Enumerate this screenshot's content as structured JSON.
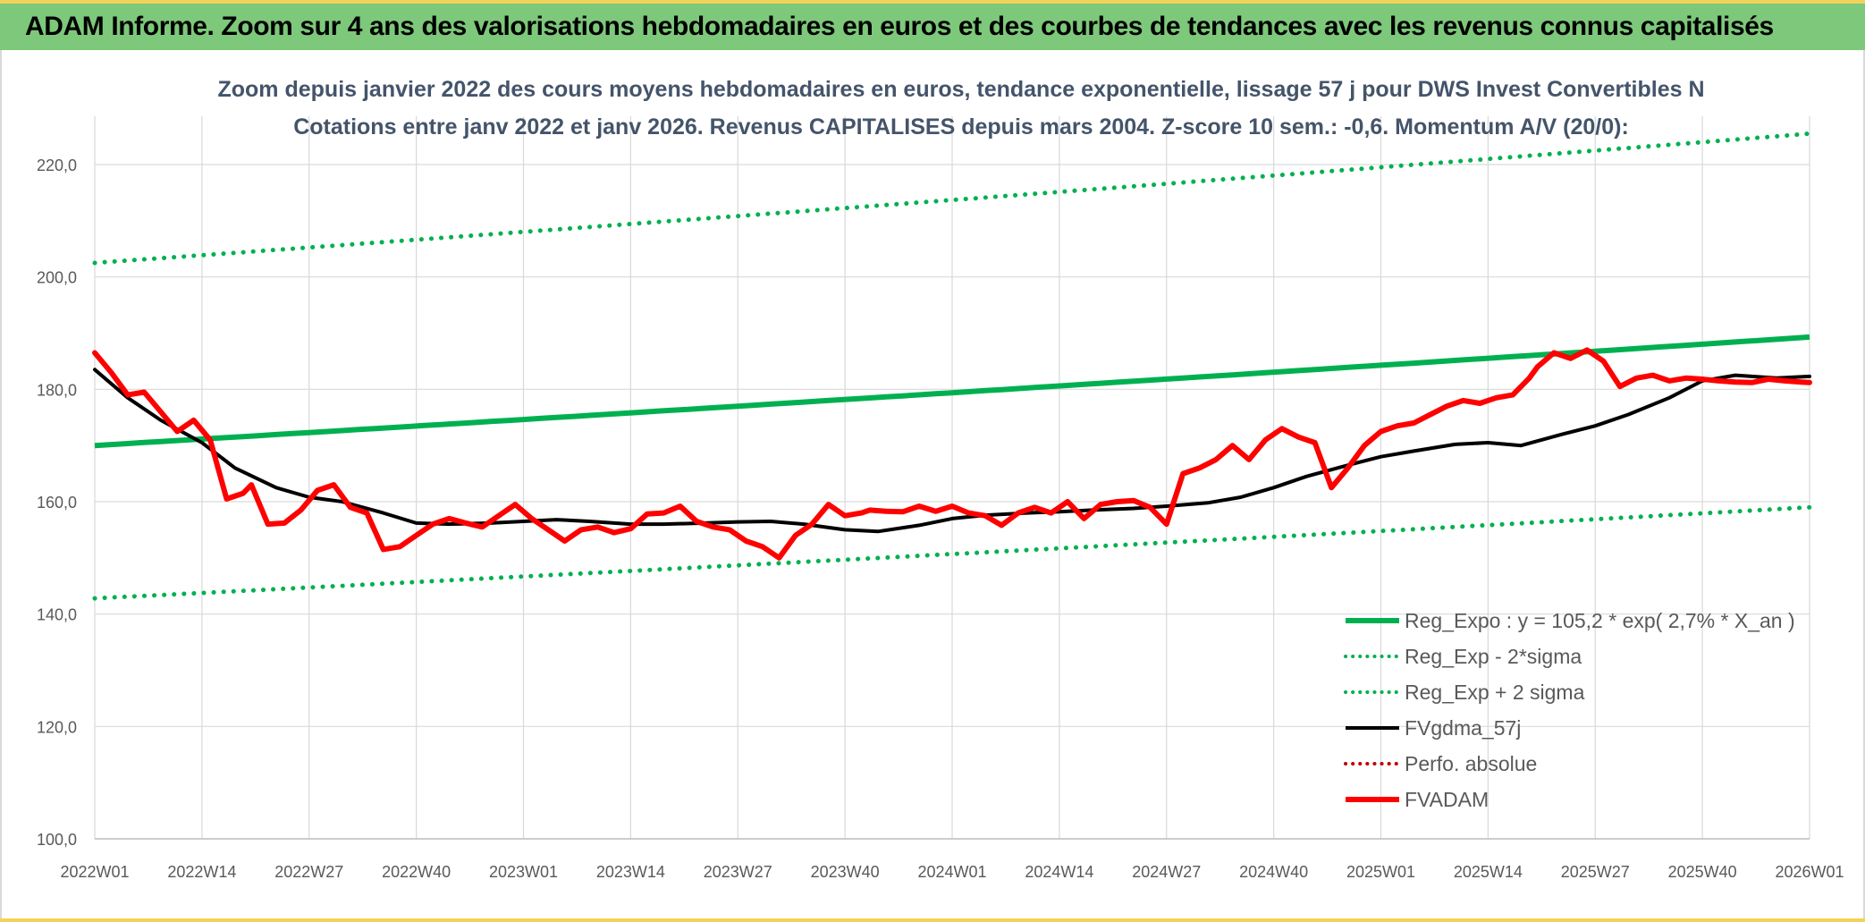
{
  "banner": {
    "title": "ADAM Informe. Zoom sur 4 ans des valorisations hebdomadaires en euros et des courbes de tendances avec les revenus connus capitalisés"
  },
  "colors": {
    "banner_bg": "#7dc87a",
    "accent_yellow": "#f2d25a",
    "trend_green": "#00b050",
    "fvadam_red": "#ff0000",
    "moving_avg_black": "#000000",
    "perfo_red": "#c00000",
    "title_text": "#44546a",
    "axis_text": "#595959",
    "grid": "#d9d9d9"
  },
  "chart_data": {
    "type": "line",
    "title_line1": "Zoom depuis janvier 2022 des cours moyens hebdomadaires en euros, tendance exponentielle, lissage 57 j pour DWS Invest Convertibles N",
    "title_line2": "Cotations entre janv 2022 et janv 2026. Revenus CAPITALISES depuis mars 2004. Z-score 10 sem.: -0,6. Momentum A/V (20/0):",
    "x_ticks": [
      "2022W01",
      "2022W14",
      "2022W27",
      "2022W40",
      "2023W01",
      "2023W14",
      "2023W27",
      "2023W40",
      "2024W01",
      "2024W14",
      "2024W27",
      "2024W40",
      "2025W01",
      "2025W14",
      "2025W27",
      "2025W40",
      "2026W01"
    ],
    "y_ticks": [
      "100,0",
      "120,0",
      "140,0",
      "160,0",
      "180,0",
      "200,0",
      "220,0"
    ],
    "ylim": [
      100,
      230
    ],
    "grid": true,
    "legend_position": "bottom-right",
    "legend": [
      {
        "label": "Reg_Expo : y = 105,2 * exp( 2,7% *  X_an )",
        "style": "solid-thick",
        "color": "#00b050"
      },
      {
        "label": "Reg_Exp - 2*sigma",
        "style": "dotted",
        "color": "#00b050"
      },
      {
        "label": "Reg_Exp + 2 sigma",
        "style": "dotted",
        "color": "#00b050"
      },
      {
        "label": "FVgdma_57j",
        "style": "solid",
        "color": "#000000"
      },
      {
        "label": "Perfo. absolue",
        "style": "dotted",
        "color": "#c00000"
      },
      {
        "label": "FVADAM",
        "style": "solid-thick",
        "color": "#ff0000"
      }
    ],
    "series": [
      {
        "name": "Reg_Expo : y = 105,2 * exp( 2,7% *  X_an )",
        "x_start": "2022W01",
        "x_end": "2026W01",
        "y_start": 170.0,
        "y_end": 189.3
      },
      {
        "name": "Reg_Exp - 2*sigma",
        "x_start": "2022W01",
        "x_end": "2026W01",
        "y_start": 142.8,
        "y_end": 159.0
      },
      {
        "name": "Reg_Exp + 2 sigma",
        "x_start": "2022W01",
        "x_end": "2026W01",
        "y_start": 202.5,
        "y_end": 225.5
      },
      {
        "name": "FVgdma_57j",
        "week_index": [
          0,
          4,
          8,
          13,
          17,
          22,
          26,
          30,
          35,
          39,
          43,
          48,
          52,
          56,
          60,
          65,
          69,
          74,
          78,
          82,
          86,
          91,
          95,
          100,
          104,
          108,
          113,
          117,
          121,
          126,
          130,
          135,
          139,
          143,
          147,
          152,
          156,
          160,
          165,
          169,
          173,
          178,
          182,
          186,
          191,
          195,
          199,
          204,
          208
        ],
        "values": [
          183.5,
          178.5,
          174.5,
          170.5,
          166,
          162.5,
          160.8,
          160,
          158,
          156.2,
          156,
          156.2,
          156.5,
          156.8,
          156.5,
          156,
          156,
          156.2,
          156.4,
          156.5,
          156,
          155,
          154.7,
          155.8,
          157,
          157.6,
          158,
          158.2,
          158.5,
          158.8,
          159.2,
          159.8,
          160.8,
          162.5,
          164.5,
          166.5,
          168,
          169,
          170.2,
          170.5,
          170,
          172,
          173.5,
          175.5,
          178.5,
          181.5,
          182.5,
          182,
          182.3
        ]
      },
      {
        "name": "FVADAM",
        "week_index": [
          0,
          2,
          4,
          6,
          8,
          10,
          12,
          14,
          16,
          18,
          19,
          21,
          23,
          25,
          27,
          29,
          31,
          33,
          35,
          37,
          39,
          41,
          43,
          45,
          47,
          49,
          51,
          53,
          55,
          57,
          59,
          61,
          63,
          65,
          67,
          69,
          71,
          73,
          75,
          77,
          79,
          81,
          83,
          85,
          87,
          89,
          91,
          93,
          94,
          96,
          98,
          100,
          102,
          104,
          106,
          108,
          110,
          112,
          114,
          116,
          118,
          120,
          122,
          124,
          126,
          128,
          130,
          132,
          134,
          136,
          138,
          140,
          142,
          144,
          146,
          148,
          150,
          152,
          154,
          156,
          158,
          160,
          162,
          164,
          166,
          168,
          170,
          172,
          174,
          175,
          177,
          179,
          181,
          183,
          185,
          187,
          189,
          191,
          193,
          195,
          197,
          199,
          201,
          203,
          205,
          207,
          208
        ],
        "values": [
          186.5,
          183,
          179,
          179.5,
          176,
          172.5,
          174.5,
          171,
          160.5,
          161.5,
          163,
          156,
          156.2,
          158.5,
          162,
          163,
          159,
          158,
          151.5,
          152,
          154,
          156,
          157,
          156.2,
          155.5,
          157.5,
          159.5,
          157,
          155,
          153,
          155,
          155.5,
          154.5,
          155.2,
          157.8,
          158,
          159.2,
          156.5,
          155.5,
          155,
          153,
          152,
          150,
          154,
          156,
          159.5,
          157.5,
          158,
          158.5,
          158.3,
          158.2,
          159.2,
          158.3,
          159.2,
          158,
          157.5,
          155.8,
          158,
          159,
          158,
          160,
          157,
          159.5,
          160,
          160.2,
          159,
          156,
          165,
          166,
          167.5,
          170,
          167.5,
          171,
          173,
          171.5,
          170.5,
          162.5,
          166,
          170,
          172.5,
          173.5,
          174,
          175.5,
          177,
          178,
          177.5,
          178.5,
          179,
          182,
          184,
          186.5,
          185.5,
          187,
          185,
          180.5,
          182,
          182.5,
          181.5,
          182,
          181.8,
          181.5,
          181.3,
          181.2,
          181.8,
          181.5,
          181.3,
          181.2
        ]
      },
      {
        "name": "Perfo. absolue",
        "values": []
      }
    ]
  }
}
